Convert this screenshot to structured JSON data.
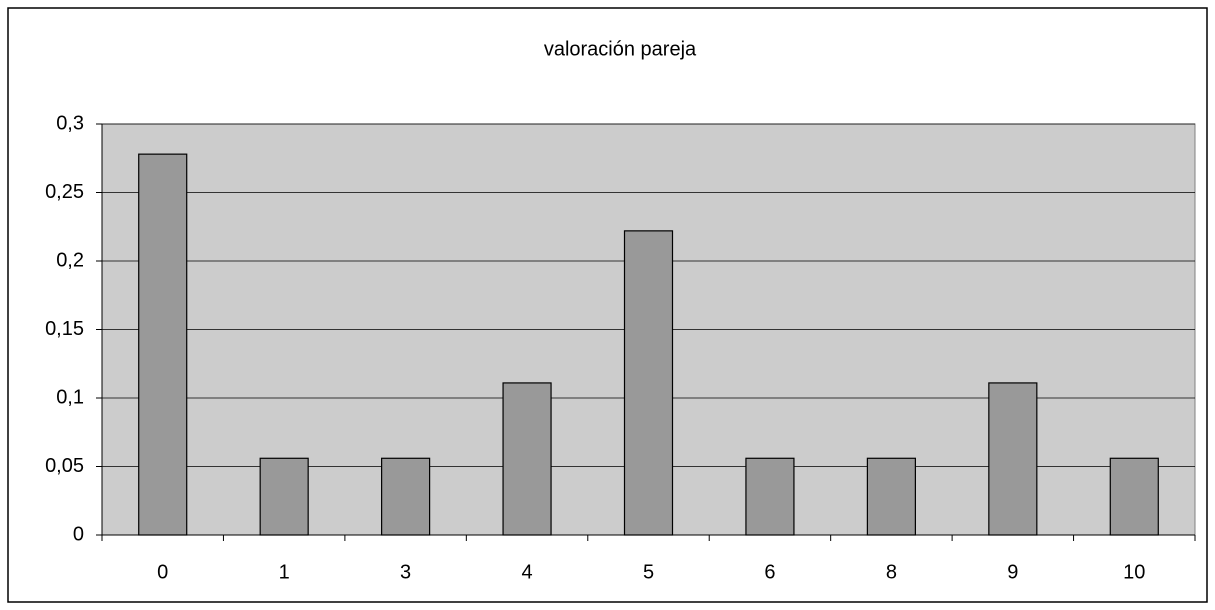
{
  "chart_data": {
    "type": "bar",
    "title": "valoración pareja",
    "categories": [
      "0",
      "1",
      "3",
      "4",
      "5",
      "6",
      "8",
      "9",
      "10"
    ],
    "values": [
      0.278,
      0.056,
      0.056,
      0.111,
      0.222,
      0.056,
      0.056,
      0.111,
      0.056
    ],
    "color": "#999999",
    "ylim": [
      0,
      0.3
    ],
    "yticks": [
      0,
      {
        "value": 0.05,
        "label": "0,05"
      },
      {
        "value": 0.1,
        "label": "0,1"
      },
      {
        "value": 0.15,
        "label": "0,15"
      },
      {
        "value": 0.2,
        "label": "0,2"
      },
      {
        "value": 0.25,
        "label": "0,25"
      },
      {
        "value": 0.3,
        "label": "0,3"
      }
    ],
    "grid": true
  }
}
